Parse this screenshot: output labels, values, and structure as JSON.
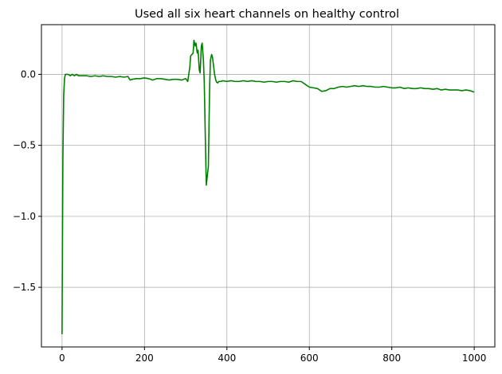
{
  "chart_data": {
    "type": "line",
    "title": "Used all six heart channels on healthy control",
    "xlabel": "",
    "ylabel": "",
    "xlim": [
      -50,
      1050
    ],
    "ylim": [
      -1.92,
      0.35
    ],
    "xticks": [
      0,
      200,
      400,
      600,
      800,
      1000
    ],
    "yticks": [
      0.0,
      -0.5,
      -1.0,
      -1.5
    ],
    "ytick_labels": [
      "0.0",
      "−0.5",
      "−1.0",
      "−1.5"
    ],
    "grid": true,
    "legend": "none",
    "series": [
      {
        "color": "#008000",
        "x": [
          0,
          2,
          4,
          6,
          8,
          10,
          15,
          20,
          25,
          30,
          35,
          40,
          50,
          60,
          70,
          80,
          90,
          100,
          110,
          120,
          130,
          140,
          150,
          160,
          165,
          170,
          180,
          190,
          200,
          210,
          220,
          230,
          240,
          250,
          260,
          270,
          280,
          290,
          300,
          305,
          310,
          312,
          315,
          318,
          320,
          323,
          325,
          328,
          330,
          333,
          335,
          338,
          340,
          343,
          345,
          348,
          350,
          353,
          355,
          358,
          360,
          363,
          365,
          368,
          370,
          373,
          375,
          378,
          380,
          385,
          390,
          400,
          410,
          420,
          430,
          440,
          450,
          460,
          470,
          480,
          490,
          500,
          510,
          520,
          530,
          540,
          550,
          560,
          570,
          580,
          590,
          600,
          610,
          620,
          630,
          640,
          650,
          660,
          670,
          680,
          690,
          700,
          710,
          720,
          730,
          740,
          750,
          760,
          770,
          780,
          790,
          800,
          810,
          820,
          830,
          840,
          850,
          860,
          870,
          880,
          890,
          900,
          910,
          920,
          930,
          940,
          950,
          960,
          970,
          980,
          990,
          1000
        ],
        "y": [
          -1.83,
          -0.6,
          -0.15,
          -0.03,
          0.0,
          0.0,
          0.0,
          -0.01,
          0.0,
          -0.01,
          0.0,
          -0.01,
          -0.01,
          -0.01,
          -0.015,
          -0.01,
          -0.015,
          -0.01,
          -0.015,
          -0.015,
          -0.02,
          -0.015,
          -0.02,
          -0.015,
          -0.04,
          -0.035,
          -0.03,
          -0.03,
          -0.025,
          -0.03,
          -0.04,
          -0.03,
          -0.03,
          -0.035,
          -0.04,
          -0.035,
          -0.035,
          -0.04,
          -0.03,
          -0.05,
          0.05,
          0.13,
          0.14,
          0.15,
          0.24,
          0.2,
          0.22,
          0.15,
          0.17,
          0.03,
          0.01,
          0.2,
          0.22,
          0.1,
          -0.05,
          -0.5,
          -0.78,
          -0.7,
          -0.65,
          -0.1,
          0.1,
          0.14,
          0.12,
          0.05,
          0.0,
          -0.04,
          -0.055,
          -0.06,
          -0.05,
          -0.05,
          -0.045,
          -0.05,
          -0.045,
          -0.05,
          -0.05,
          -0.045,
          -0.05,
          -0.045,
          -0.05,
          -0.05,
          -0.055,
          -0.05,
          -0.05,
          -0.055,
          -0.05,
          -0.05,
          -0.055,
          -0.045,
          -0.05,
          -0.05,
          -0.07,
          -0.09,
          -0.095,
          -0.1,
          -0.12,
          -0.115,
          -0.1,
          -0.1,
          -0.09,
          -0.085,
          -0.09,
          -0.085,
          -0.08,
          -0.085,
          -0.08,
          -0.085,
          -0.085,
          -0.09,
          -0.09,
          -0.085,
          -0.09,
          -0.095,
          -0.095,
          -0.09,
          -0.1,
          -0.095,
          -0.1,
          -0.1,
          -0.095,
          -0.1,
          -0.1,
          -0.105,
          -0.1,
          -0.11,
          -0.105,
          -0.11,
          -0.11,
          -0.11,
          -0.115,
          -0.11,
          -0.115,
          -0.125
        ]
      }
    ]
  }
}
